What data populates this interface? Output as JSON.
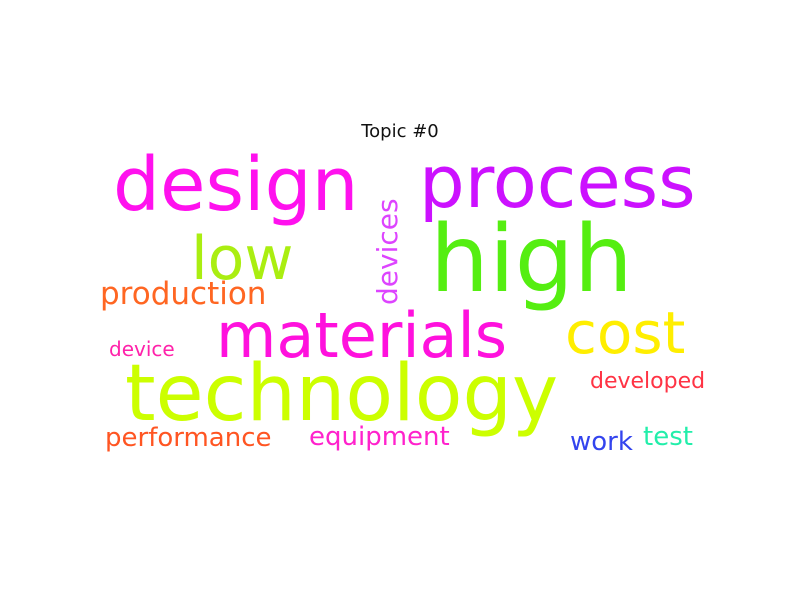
{
  "title": "Topic #0",
  "words": [
    {
      "id": "technology",
      "text": "technology",
      "color": "#ccff00"
    },
    {
      "id": "high",
      "text": "high",
      "color": "#55ee11"
    },
    {
      "id": "design",
      "text": "design",
      "color": "#ff11ee"
    },
    {
      "id": "process",
      "text": "process",
      "color": "#cc11ff"
    },
    {
      "id": "materials",
      "text": "materials",
      "color": "#ff11dd"
    },
    {
      "id": "low",
      "text": "low",
      "color": "#aaee11"
    },
    {
      "id": "cost",
      "text": "cost",
      "color": "#ffee00"
    },
    {
      "id": "production",
      "text": "production",
      "color": "#ff6622"
    },
    {
      "id": "devices",
      "text": "devices",
      "color": "#dd44ff"
    },
    {
      "id": "performance",
      "text": "performance",
      "color": "#ff5522"
    },
    {
      "id": "equipment",
      "text": "equipment",
      "color": "#ff22cc"
    },
    {
      "id": "developed",
      "text": "developed",
      "color": "#ff3344"
    },
    {
      "id": "device",
      "text": "device",
      "color": "#ff22aa"
    },
    {
      "id": "work",
      "text": "work",
      "color": "#3344ee"
    },
    {
      "id": "test",
      "text": "test",
      "color": "#22eeaa"
    }
  ]
}
